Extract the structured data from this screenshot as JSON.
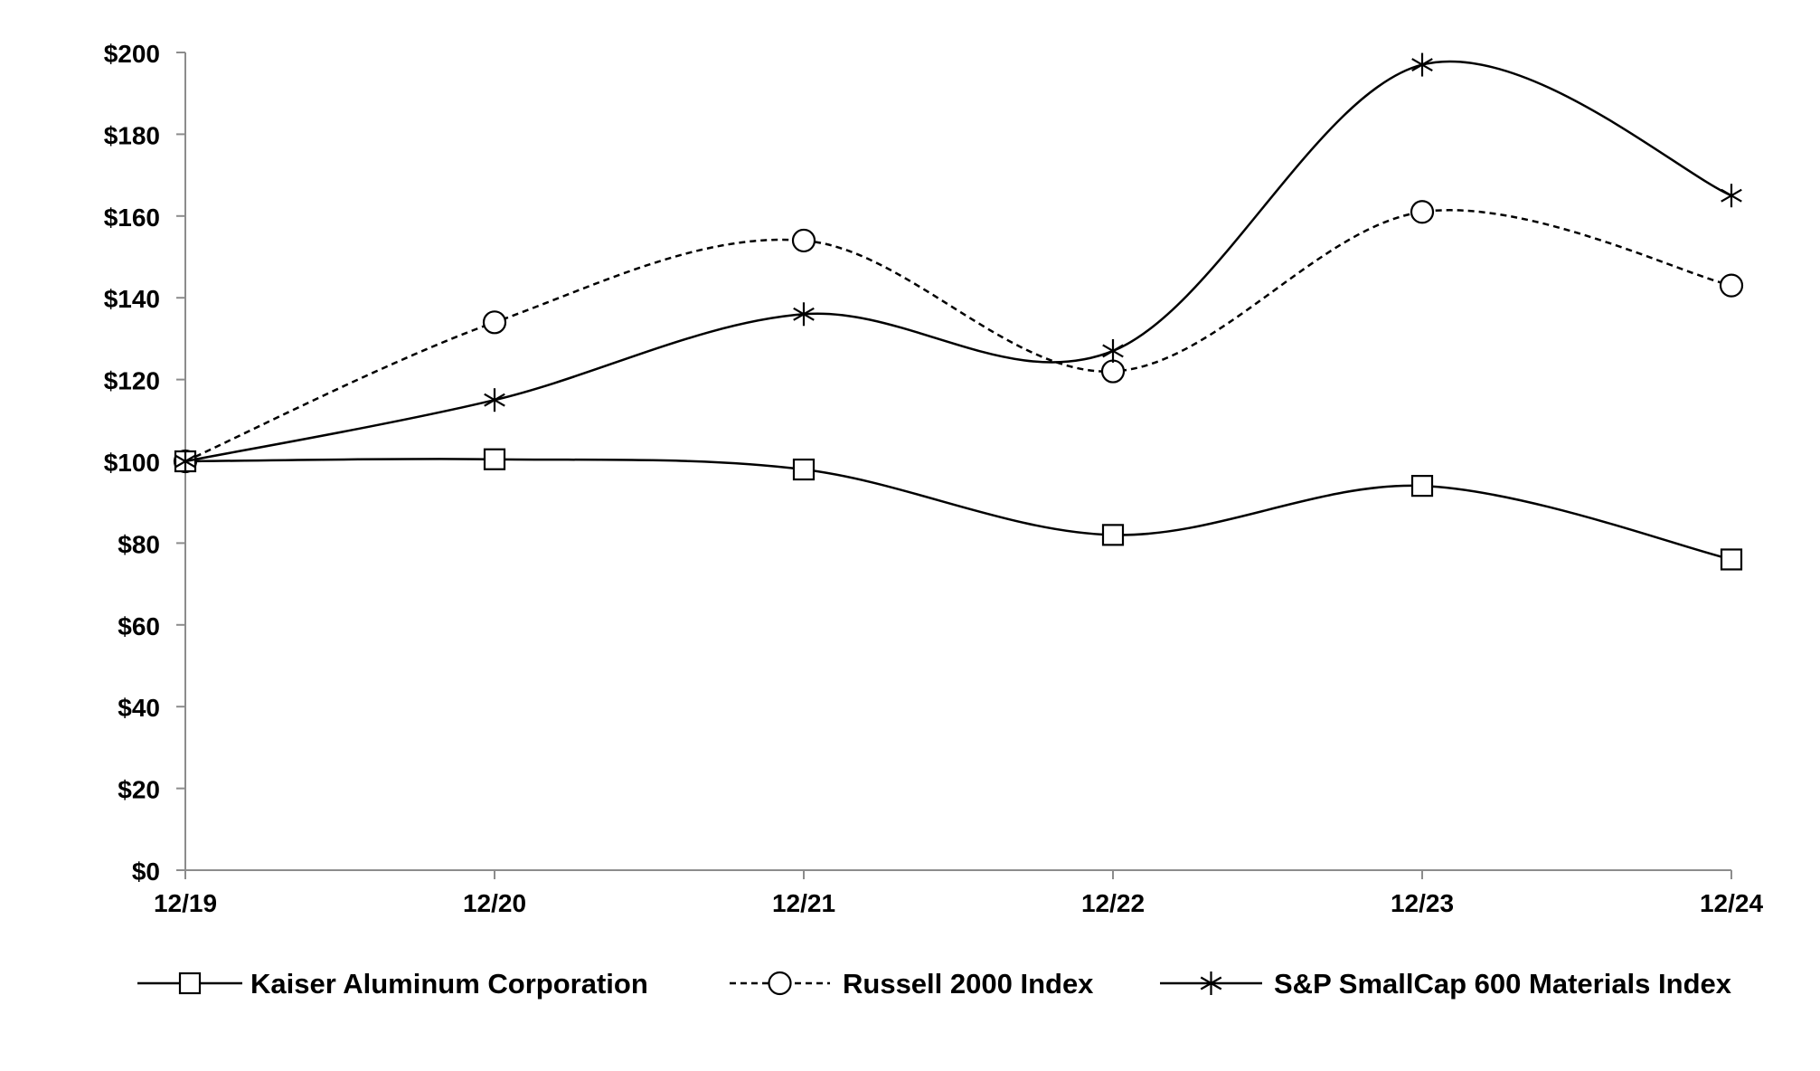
{
  "chart_data": {
    "type": "line",
    "title": "",
    "xlabel": "",
    "ylabel": "",
    "categories": [
      "12/19",
      "12/20",
      "12/21",
      "12/22",
      "12/23",
      "12/24"
    ],
    "ylim": [
      0,
      200
    ],
    "yticks": [
      0,
      20,
      40,
      60,
      80,
      100,
      120,
      140,
      160,
      180,
      200
    ],
    "ytick_labels": [
      "$0",
      "$20",
      "$40",
      "$60",
      "$80",
      "$100",
      "$120",
      "$140",
      "$160",
      "$180",
      "$200"
    ],
    "grid": false,
    "legend_position": "bottom",
    "smooth": true,
    "series": [
      {
        "name": "Kaiser Aluminum Corporation",
        "values": [
          100,
          100.5,
          98,
          82,
          94,
          76
        ],
        "marker": "square",
        "line_style": "solid",
        "color": "#000000"
      },
      {
        "name": "Russell 2000 Index",
        "values": [
          100,
          134,
          154,
          122,
          161,
          143
        ],
        "marker": "circle",
        "line_style": "dashed",
        "color": "#000000"
      },
      {
        "name": "S&P SmallCap 600 Materials Index",
        "values": [
          100,
          115,
          136,
          127,
          197,
          165
        ],
        "marker": "asterisk",
        "line_style": "solid",
        "color": "#000000"
      }
    ]
  }
}
